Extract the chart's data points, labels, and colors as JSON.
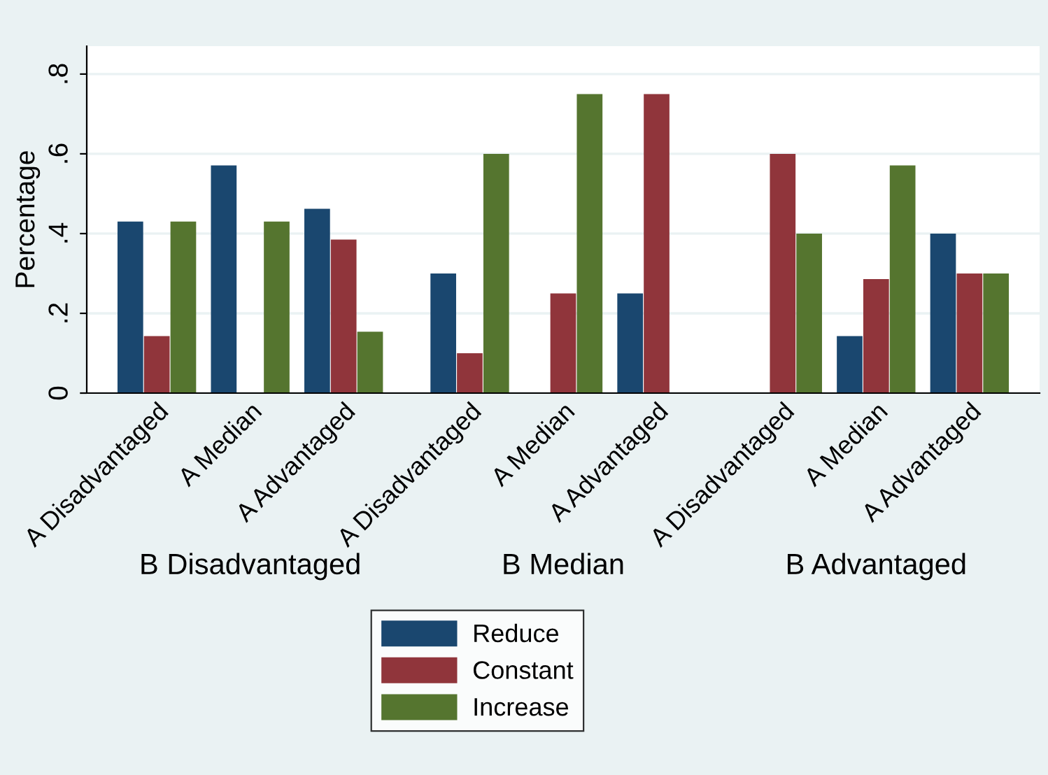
{
  "chart_data": {
    "type": "bar",
    "ylabel": "Percentage",
    "categories": [
      "A Disadvantaged",
      "A Median",
      "A Advantaged",
      "A Disadvantaged",
      "A Median",
      "A Advantaged",
      "A Disadvantaged",
      "A Median",
      "A Advantaged"
    ],
    "annotations": [
      "B Disadvantaged",
      "B Median",
      "B Advantaged"
    ],
    "series": [
      {
        "name": "Reduce",
        "color": "#1a476f",
        "values": [
          0.43,
          0.571,
          0.462,
          0.3,
          0,
          0.25,
          0,
          0.143,
          0.4
        ]
      },
      {
        "name": "Constant",
        "color": "#90353b",
        "values": [
          0.143,
          0,
          0.385,
          0.1,
          0.25,
          0.75,
          0.6,
          0.286,
          0.3
        ]
      },
      {
        "name": "Increase",
        "color": "#55752f",
        "values": [
          0.43,
          0.43,
          0.154,
          0.6,
          0.75,
          0,
          0.4,
          0.571,
          0.3
        ]
      }
    ],
    "ylim": [
      0,
      0.87
    ],
    "yticks": [
      {
        "value": 0,
        "label": "0"
      },
      {
        "value": 0.2,
        "label": ".2"
      },
      {
        "value": 0.4,
        "label": ".4"
      },
      {
        "value": 0.6,
        "label": ".6"
      },
      {
        "value": 0.8,
        "label": ".8"
      }
    ],
    "grid": "y",
    "legend": "bottom"
  }
}
